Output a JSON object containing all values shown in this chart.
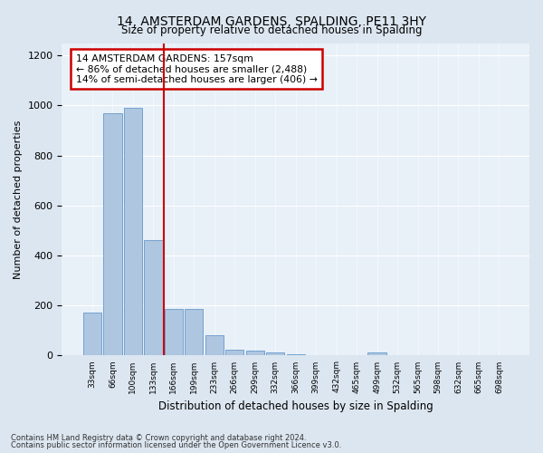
{
  "title": "14, AMSTERDAM GARDENS, SPALDING, PE11 3HY",
  "subtitle": "Size of property relative to detached houses in Spalding",
  "xlabel": "Distribution of detached houses by size in Spalding",
  "ylabel": "Number of detached properties",
  "categories": [
    "33sqm",
    "66sqm",
    "100sqm",
    "133sqm",
    "166sqm",
    "199sqm",
    "233sqm",
    "266sqm",
    "299sqm",
    "332sqm",
    "366sqm",
    "399sqm",
    "432sqm",
    "465sqm",
    "499sqm",
    "532sqm",
    "565sqm",
    "598sqm",
    "632sqm",
    "665sqm",
    "698sqm"
  ],
  "values": [
    172,
    968,
    990,
    462,
    188,
    188,
    80,
    25,
    20,
    12,
    5,
    0,
    0,
    0,
    14,
    0,
    0,
    0,
    0,
    0,
    0
  ],
  "bar_color": "#aec6e0",
  "bar_edge_color": "#6699cc",
  "vline_color": "#cc0000",
  "vline_x": 3.5,
  "annotation_text": "14 AMSTERDAM GARDENS: 157sqm\n← 86% of detached houses are smaller (2,488)\n14% of semi-detached houses are larger (406) →",
  "annotation_box_color": "#ffffff",
  "annotation_box_edge_color": "#cc0000",
  "footnote1": "Contains HM Land Registry data © Crown copyright and database right 2024.",
  "footnote2": "Contains public sector information licensed under the Open Government Licence v3.0.",
  "background_color": "#dce6f0",
  "plot_background_color": "#e8f0f8",
  "ylim": [
    0,
    1250
  ],
  "yticks": [
    0,
    200,
    400,
    600,
    800,
    1000,
    1200
  ]
}
